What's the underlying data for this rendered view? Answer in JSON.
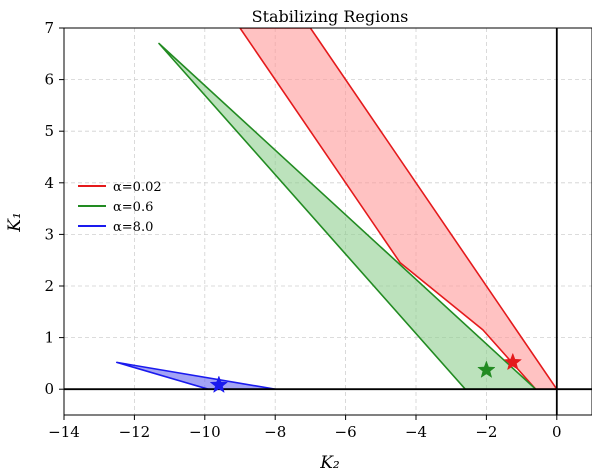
{
  "chart_data": {
    "type": "area",
    "title": "Stabilizing Regions",
    "xlabel": "K₂",
    "ylabel": "K₁",
    "xlim": [
      -14,
      1
    ],
    "ylim": [
      -0.5,
      7
    ],
    "xticks": [
      -14,
      -12,
      -10,
      -8,
      -6,
      -4,
      -2,
      0
    ],
    "xtick_labels": [
      "−14",
      "−12",
      "−10",
      "−8",
      "−6",
      "−4",
      "−2",
      "0"
    ],
    "yticks": [
      0,
      1,
      2,
      3,
      4,
      5,
      6,
      7
    ],
    "ytick_labels": [
      "0",
      "1",
      "2",
      "3",
      "4",
      "5",
      "6",
      "7"
    ],
    "grid": true,
    "legend_position": "center-left",
    "series": [
      {
        "name": "α=0.02",
        "color": "#e41a1c",
        "fill": "#ff9999",
        "polygon": [
          [
            -9.0,
            7.0
          ],
          [
            -7.0,
            7.0
          ],
          [
            0.0,
            0.0
          ],
          [
            -0.6,
            0.0
          ],
          [
            -2.1,
            1.15
          ],
          [
            -4.45,
            2.45
          ]
        ],
        "star": [
          -1.25,
          0.52
        ]
      },
      {
        "name": "α=0.6",
        "color": "#228b22",
        "fill": "#8fcf8f",
        "polygon": [
          [
            -11.3,
            6.7
          ],
          [
            -0.6,
            0.0
          ],
          [
            -2.6,
            0.0
          ]
        ],
        "star": [
          -2.0,
          0.37
        ]
      },
      {
        "name": "α=8.0",
        "color": "#1a1aee",
        "fill": "#6666ee",
        "polygon": [
          [
            -12.5,
            0.52
          ],
          [
            -8.0,
            0.0
          ],
          [
            -9.9,
            0.0
          ]
        ],
        "star": [
          -9.6,
          0.08
        ]
      }
    ],
    "reference_lines": {
      "horizontal_at": 0,
      "vertical_at": 0
    }
  }
}
